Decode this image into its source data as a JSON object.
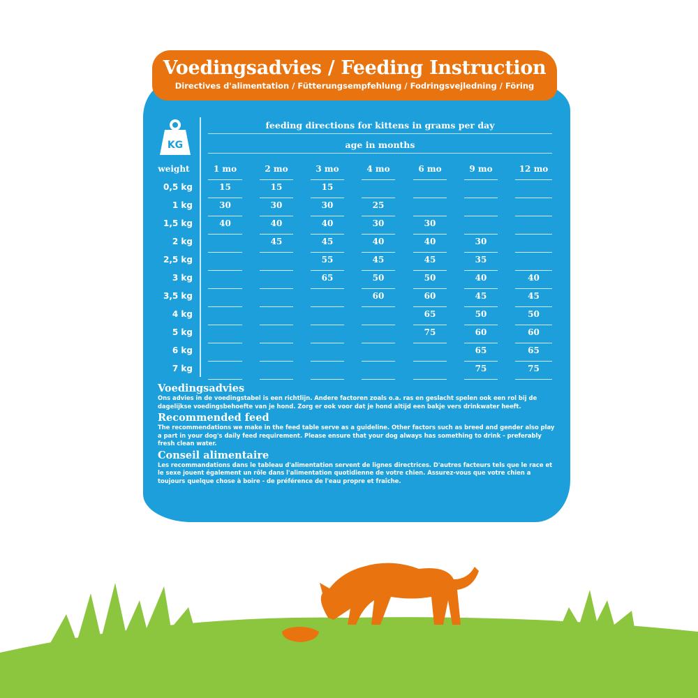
{
  "banner": {
    "title": "Voedingsadvies / Feeding Instruction",
    "subtitle": "Directives d'alimentation / Fütterungsempfehlung / Fodringsvejledning / Föring"
  },
  "kg_icon": {
    "name": "weight-kg-icon",
    "label": "KG"
  },
  "table": {
    "title": "feeding directions for kittens in grams per day",
    "subtitle": "age in months",
    "weight_header": "weight",
    "columns": [
      "1 mo",
      "2 mo",
      "3 mo",
      "4 mo",
      "6 mo",
      "9 mo",
      "12 mo"
    ],
    "rows": [
      {
        "weight": "0,5 kg",
        "values": [
          "15",
          "15",
          "15",
          "",
          "",
          "",
          ""
        ]
      },
      {
        "weight": "1 kg",
        "values": [
          "30",
          "30",
          "30",
          "25",
          "",
          "",
          ""
        ]
      },
      {
        "weight": "1,5 kg",
        "values": [
          "40",
          "40",
          "40",
          "30",
          "30",
          "",
          ""
        ]
      },
      {
        "weight": "2 kg",
        "values": [
          "",
          "45",
          "45",
          "40",
          "40",
          "30",
          ""
        ]
      },
      {
        "weight": "2,5 kg",
        "values": [
          "",
          "",
          "55",
          "45",
          "45",
          "35",
          ""
        ]
      },
      {
        "weight": "3 kg",
        "values": [
          "",
          "",
          "65",
          "50",
          "50",
          "40",
          "40"
        ]
      },
      {
        "weight": "3,5 kg",
        "values": [
          "",
          "",
          "",
          "60",
          "60",
          "45",
          "45"
        ]
      },
      {
        "weight": "4 kg",
        "values": [
          "",
          "",
          "",
          "",
          "65",
          "50",
          "50"
        ]
      },
      {
        "weight": "5 kg",
        "values": [
          "",
          "",
          "",
          "",
          "75",
          "60",
          "60"
        ]
      },
      {
        "weight": "6 kg",
        "values": [
          "",
          "",
          "",
          "",
          "",
          "65",
          "65"
        ]
      },
      {
        "weight": "7 kg",
        "values": [
          "",
          "",
          "",
          "",
          "",
          "75",
          "75"
        ]
      }
    ]
  },
  "notes": [
    {
      "heading": "Voedingsadvies",
      "text": "Ons advies in de voedingstabel is een richtlijn. Andere factoren zoals o.a. ras en geslacht spelen ook een rol bij de dagelijkse voedingsbehoefte van je hond. Zorg er ook voor dat je hond altijd een bakje vers drinkwater heeft."
    },
    {
      "heading": "Recommended feed",
      "text": "The recommendations we make in the feed table serve as a guideline. Other factors such as breed and gender also play a part in your dog's daily feed requirement. Please ensure that your dog always has something to drink - preferably fresh clean water."
    },
    {
      "heading": "Conseil alimentaire",
      "text": "Les recommandations dans le tableau d'alimentation servent de lignes directrices. D'autres facteurs tels que le race et le sexe jouent également un rôle dans l'alimentation quotidienne de votre chien. Assurez-vous que votre chien a toujours quelque chose à boire - de préférence de l'eau propre et fraîche."
    }
  ],
  "colors": {
    "orange": "#e8730f",
    "blue": "#1d9fdb",
    "green": "#8cc63f"
  }
}
